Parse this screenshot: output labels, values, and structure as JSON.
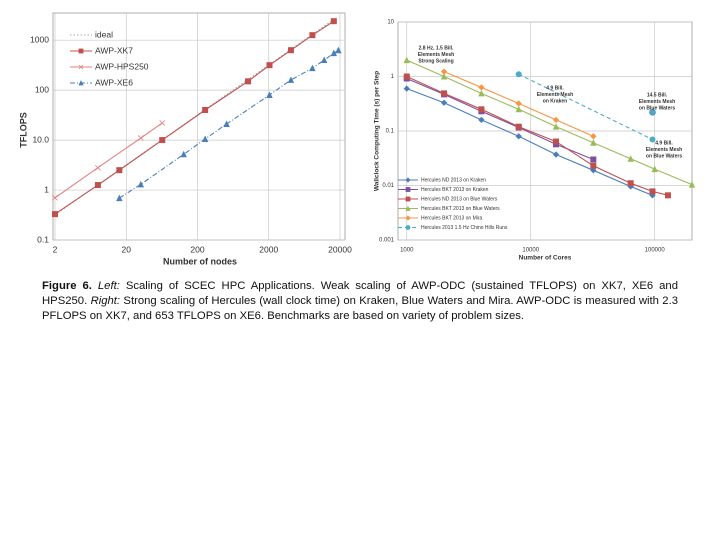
{
  "chart_data": [
    {
      "type": "line",
      "xlabel": "Number of nodes",
      "ylabel": "TFLOPS",
      "xscale": "log",
      "yscale": "log",
      "grid": true,
      "legend": "upper left",
      "xlim": [
        2,
        20000
      ],
      "xticks": [
        2,
        20,
        200,
        2000,
        20000
      ],
      "ylim": [
        0.1,
        3500
      ],
      "yticks": [
        0.1,
        1,
        {
          "value": 10,
          "label": "10.0"
        },
        100,
        1000
      ],
      "series": [
        {
          "name": "ideal",
          "color": "#aaaaaa",
          "line_style": "dotted",
          "marker": "none",
          "x": [
            2,
            16384
          ],
          "values": [
            0.32,
            2600
          ]
        },
        {
          "name": "AWP-XK7",
          "color": "#c0504d",
          "line_style": "solid",
          "marker": "square",
          "x": [
            2,
            8,
            16,
            64,
            256,
            1024,
            2048,
            4096,
            8192,
            16384
          ],
          "values": [
            0.33,
            1.26,
            2.5,
            10,
            40,
            150,
            316,
            630,
            1260,
            2400
          ]
        },
        {
          "name": "AWP-HPS250",
          "color": "#e08080",
          "line_style": "solid",
          "marker": "x",
          "x": [
            2,
            8,
            32,
            64
          ],
          "values": [
            0.7,
            2.8,
            11,
            22
          ]
        },
        {
          "name": "AWP-XE6",
          "color": "#4a7ebb",
          "line_style": "dashdot",
          "marker": "triangle",
          "x": [
            16,
            32,
            128,
            256,
            512,
            2048,
            4096,
            8192,
            12000,
            16384,
            19000
          ],
          "values": [
            0.69,
            1.3,
            5.2,
            10.5,
            21,
            80,
            160,
            275,
            400,
            550,
            630
          ]
        }
      ]
    },
    {
      "type": "line",
      "xlabel": "Number of Cores",
      "ylabel": "Wallclock Computing Time (s) per Step",
      "xscale": "log",
      "yscale": "log",
      "grid": true,
      "legend": "lower left",
      "xlim": [
        850,
        200000
      ],
      "xticks": [
        1000,
        10000,
        100000
      ],
      "ylim": [
        0.001,
        10
      ],
      "yticks": [
        0.001,
        0.01,
        0.1,
        1,
        10
      ],
      "series": [
        {
          "name": "Hercules ND 2013 on Kraken",
          "color": "#4a7ebb",
          "line_style": "solid",
          "marker": "diamond",
          "x": [
            1000,
            2000,
            4000,
            8000,
            16000,
            32000,
            64000,
            96000
          ],
          "values": [
            0.6,
            0.33,
            0.16,
            0.08,
            0.037,
            0.019,
            0.0096,
            0.0066
          ]
        },
        {
          "name": "Hercules BKT 2013 on Kraken",
          "color": "#7f4f9f",
          "line_style": "solid",
          "marker": "square",
          "x": [
            1000,
            2000,
            4000,
            8000,
            16000,
            32000
          ],
          "values": [
            0.92,
            0.47,
            0.23,
            0.116,
            0.057,
            0.03
          ]
        },
        {
          "name": "Hercules ND 2013 on Blue Waters",
          "color": "#c0504d",
          "line_style": "solid",
          "marker": "square",
          "x": [
            1000,
            2000,
            4000,
            8000,
            16000,
            32000,
            64000,
            96000,
            128000
          ],
          "values": [
            1,
            0.49,
            0.25,
            0.12,
            0.064,
            0.023,
            0.011,
            0.0078,
            0.0066
          ]
        },
        {
          "name": "Hercules BKT 2013 on Blue Waters",
          "color": "#9bbb59",
          "line_style": "solid",
          "marker": "triangle",
          "x": [
            1000,
            2000,
            4000,
            8000,
            16000,
            32000,
            64000,
            100000,
            200000
          ],
          "values": [
            2,
            1,
            0.49,
            0.25,
            0.12,
            0.061,
            0.031,
            0.02,
            0.0104
          ]
        },
        {
          "name": "Hercules BKT 2013 on Mira",
          "color": "#f79646",
          "line_style": "solid",
          "marker": "diamond",
          "x": [
            2000,
            4000,
            8000,
            16000,
            32000
          ],
          "values": [
            1.23,
            0.63,
            0.32,
            0.16,
            0.08
          ]
        },
        {
          "name": "Hercules 2013 1.5 Hz Chino Hills Runs",
          "color": "#4bacc6",
          "line_style": "dashed",
          "marker": "circle",
          "x": [
            8000,
            96000
          ],
          "values": [
            1.1,
            0.07
          ]
        }
      ],
      "annotations": [
        {
          "text": [
            "2.8 Hz, 1.5 Bill.",
            "Elements Mesh",
            "Strong Scaling"
          ]
        },
        {
          "text": [
            "4.9 Bill.",
            "Elements Mesh",
            "on Kraken"
          ]
        },
        {
          "text": [
            "14.5 Bill.",
            "Elements Mesh",
            "on Blue Waters"
          ],
          "x": 96000,
          "y": 0.22
        },
        {
          "text": [
            "4.9 Bill.",
            "Elements Mesh",
            "on Blue Waters"
          ]
        }
      ]
    }
  ],
  "caption": {
    "label": "Figure 6.",
    "segments": [
      {
        "text": " ",
        "italic": false
      },
      {
        "text": "Left:",
        "italic": true
      },
      {
        "text": " Scaling of SCEC HPC Applications. Weak scaling of AWP-ODC (sustained TFLOPS) on XK7, XE6 and HPS250. ",
        "italic": false
      },
      {
        "text": "Right:",
        "italic": true
      },
      {
        "text": " Strong scaling of Hercules (wall clock time) on Kraken, Blue Waters and Mira. AWP-ODC is measured with 2.3 PFLOPS on XK7, and 653 TFLOPS on XE6. Benchmarks are based on variety of problem sizes.",
        "italic": false
      }
    ]
  }
}
